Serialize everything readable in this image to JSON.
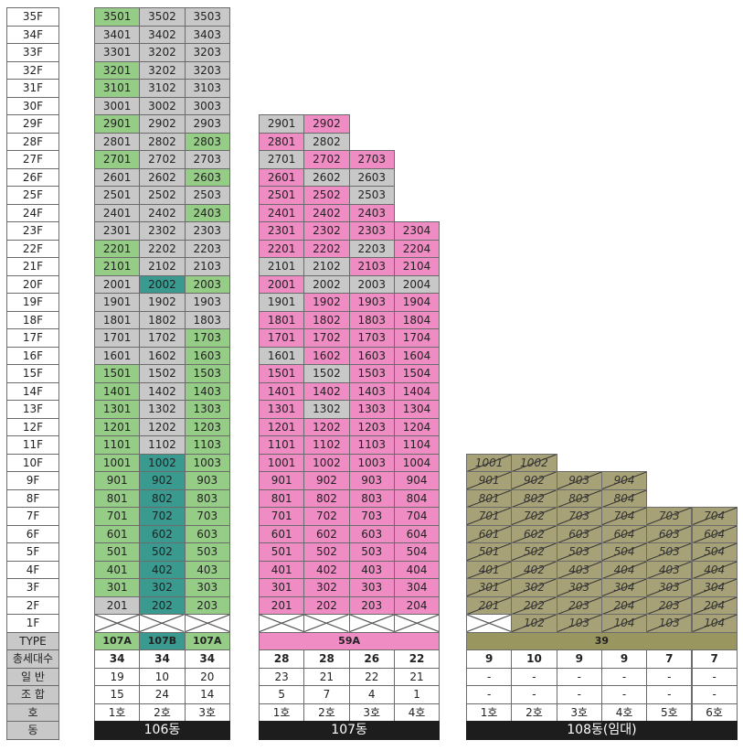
{
  "floor_labels": [
    "35F",
    "34F",
    "33F",
    "32F",
    "31F",
    "30F",
    "29F",
    "28F",
    "27F",
    "26F",
    "25F",
    "24F",
    "23F",
    "22F",
    "21F",
    "20F",
    "19F",
    "18F",
    "17F",
    "16F",
    "15F",
    "14F",
    "13F",
    "12F",
    "11F",
    "10F",
    "9F",
    "8F",
    "7F",
    "6F",
    "5F",
    "4F",
    "3F",
    "2F",
    "1F"
  ],
  "row_labels": {
    "type": "TYPE",
    "total": "총세대수",
    "general": "일 반",
    "union": "조 합",
    "ho": "호",
    "dong": "동"
  },
  "colors": {
    "gray": "#c8c8c8",
    "light_green": "#96cd86",
    "teal": "#3a9a90",
    "pink": "#f08cc4",
    "olive": "#a7a177"
  },
  "buildings": [
    {
      "id": "b106",
      "dong_label": "106동",
      "types": [
        {
          "label": "107A",
          "style": "type-106",
          "span": 1
        },
        {
          "label": "107B",
          "style": "type-107B",
          "span": 1
        },
        {
          "label": "107A",
          "style": "type-106",
          "span": 1
        }
      ],
      "ho": [
        "1호",
        "2호",
        "3호"
      ],
      "total": [
        "34",
        "34",
        "34"
      ],
      "general": [
        "19",
        "10",
        "20"
      ],
      "union": [
        "15",
        "24",
        "14"
      ],
      "units": {
        "35": [
          "3501:g",
          "3502:x",
          "3503:x"
        ],
        "34": [
          "3401:x",
          "3402:x",
          "3403:x"
        ],
        "33": [
          "3301:x",
          "3202:x",
          "3203:x"
        ],
        "32": [
          "3201:g",
          "3202:x",
          "3203:x"
        ],
        "31": [
          "3101:g",
          "3102:x",
          "3103:x"
        ],
        "30": [
          "3001:x",
          "3002:x",
          "3003:x"
        ],
        "29": [
          "2901:g",
          "2902:x",
          "2903:x"
        ],
        "28": [
          "2801:x",
          "2802:x",
          "2803:g"
        ],
        "27": [
          "2701:g",
          "2702:x",
          "2703:x"
        ],
        "26": [
          "2601:x",
          "2602:x",
          "2603:g"
        ],
        "25": [
          "2501:x",
          "2502:x",
          "2503:x"
        ],
        "24": [
          "2401:x",
          "2402:x",
          "2403:g"
        ],
        "23": [
          "2301:x",
          "2302:x",
          "2303:x"
        ],
        "22": [
          "2201:g",
          "2202:x",
          "2203:x"
        ],
        "21": [
          "2101:g",
          "2102:x",
          "2103:x"
        ],
        "20": [
          "2001:x",
          "2002:t",
          "2003:g"
        ],
        "19": [
          "1901:x",
          "1902:x",
          "1903:x"
        ],
        "18": [
          "1801:x",
          "1802:x",
          "1803:x"
        ],
        "17": [
          "1701:x",
          "1702:x",
          "1703:g"
        ],
        "16": [
          "1601:x",
          "1602:x",
          "1603:g"
        ],
        "15": [
          "1501:g",
          "1502:x",
          "1503:g"
        ],
        "14": [
          "1401:g",
          "1402:x",
          "1403:g"
        ],
        "13": [
          "1301:g",
          "1302:x",
          "1303:g"
        ],
        "12": [
          "1201:g",
          "1202:x",
          "1203:g"
        ],
        "11": [
          "1101:g",
          "1102:x",
          "1103:g"
        ],
        "10": [
          "1001:g",
          "1002:t",
          "1003:g"
        ],
        "9": [
          "901:g",
          "902:t",
          "903:g"
        ],
        "8": [
          "801:g",
          "802:t",
          "803:g"
        ],
        "7": [
          "701:g",
          "702:t",
          "703:g"
        ],
        "6": [
          "601:g",
          "602:t",
          "603:g"
        ],
        "5": [
          "501:g",
          "502:t",
          "503:g"
        ],
        "4": [
          "401:g",
          "402:t",
          "403:g"
        ],
        "3": [
          "301:g",
          "302:t",
          "303:g"
        ],
        "2": [
          "201:x",
          "202:t",
          "203:g"
        ]
      }
    },
    {
      "id": "b107",
      "dong_label": "107동",
      "types": [
        {
          "label": "59A",
          "style": "type-107",
          "span": 4
        }
      ],
      "ho": [
        "1호",
        "2호",
        "3호",
        "4호"
      ],
      "total": [
        "28",
        "28",
        "26",
        "22"
      ],
      "general": [
        "23",
        "21",
        "22",
        "21"
      ],
      "union": [
        "5",
        "7",
        "4",
        "1"
      ],
      "units": {
        "29": [
          "2901:x",
          "2902:p"
        ],
        "28": [
          "2801:p",
          "2802:x"
        ],
        "27": [
          "2701:x",
          "2702:p",
          "2703:p"
        ],
        "26": [
          "2601:p",
          "2602:x",
          "2603:x"
        ],
        "25": [
          "2501:p",
          "2502:p",
          "2503:x"
        ],
        "24": [
          "2401:p",
          "2402:p",
          "2403:p"
        ],
        "23": [
          "2301:p",
          "2302:p",
          "2303:p",
          "2304:p"
        ],
        "22": [
          "2201:p",
          "2202:p",
          "2203:x",
          "2204:p"
        ],
        "21": [
          "2101:x",
          "2102:x",
          "2103:p",
          "2104:p"
        ],
        "20": [
          "2001:p",
          "2002:x",
          "2003:x",
          "2004:x"
        ],
        "19": [
          "1901:x",
          "1902:p",
          "1903:p",
          "1904:p"
        ],
        "18": [
          "1801:p",
          "1802:p",
          "1803:p",
          "1804:p"
        ],
        "17": [
          "1701:p",
          "1702:p",
          "1703:p",
          "1704:p"
        ],
        "16": [
          "1601:x",
          "1602:p",
          "1603:p",
          "1604:p"
        ],
        "15": [
          "1501:p",
          "1502:x",
          "1503:p",
          "1504:p"
        ],
        "14": [
          "1401:p",
          "1402:p",
          "1403:p",
          "1404:p"
        ],
        "13": [
          "1301:p",
          "1302:x",
          "1303:p",
          "1304:p"
        ],
        "12": [
          "1201:p",
          "1202:p",
          "1203:p",
          "1204:p"
        ],
        "11": [
          "1101:p",
          "1102:p",
          "1103:p",
          "1104:p"
        ],
        "10": [
          "1001:p",
          "1002:p",
          "1003:p",
          "1004:p"
        ],
        "9": [
          "901:p",
          "902:p",
          "903:p",
          "904:p"
        ],
        "8": [
          "801:p",
          "802:p",
          "803:p",
          "804:p"
        ],
        "7": [
          "701:p",
          "702:p",
          "703:p",
          "704:p"
        ],
        "6": [
          "601:p",
          "602:p",
          "603:p",
          "604:p"
        ],
        "5": [
          "501:p",
          "502:p",
          "503:p",
          "504:p"
        ],
        "4": [
          "401:p",
          "402:p",
          "403:p",
          "404:p"
        ],
        "3": [
          "301:p",
          "302:p",
          "303:p",
          "304:p"
        ],
        "2": [
          "201:p",
          "202:p",
          "203:p",
          "204:p"
        ]
      }
    },
    {
      "id": "b108",
      "dong_label": "108동(임대)",
      "types": [
        {
          "label": "39",
          "style": "type-108",
          "span": 6
        }
      ],
      "ho": [
        "1호",
        "2호",
        "3호",
        "4호",
        "5호",
        "6호"
      ],
      "total": [
        "9",
        "10",
        "9",
        "9",
        "7",
        "7"
      ],
      "general": [
        "-",
        "-",
        "-",
        "-",
        "-",
        "-"
      ],
      "union": [
        "-",
        "-",
        "-",
        "-",
        "-",
        "-"
      ],
      "units": {
        "10": [
          "1001:o",
          "1002:o"
        ],
        "9": [
          "901:o",
          "902:o",
          "903:o",
          "904:o"
        ],
        "8": [
          "801:o",
          "802:o",
          "803:o",
          "804:o"
        ],
        "7": [
          "701:o",
          "702:o",
          "703:o",
          "704:o",
          "703:o",
          "704:o"
        ],
        "6": [
          "601:o",
          "602:o",
          "603:o",
          "604:o",
          "603:o",
          "604:o"
        ],
        "5": [
          "501:o",
          "502:o",
          "503:o",
          "504:o",
          "503:o",
          "504:o"
        ],
        "4": [
          "401:o",
          "402:o",
          "403:o",
          "404:o",
          "403:o",
          "404:o"
        ],
        "3": [
          "301:o",
          "302:o",
          "303:o",
          "304:o",
          "303:o",
          "304:o"
        ],
        "2": [
          "201:o",
          "202:o",
          "203:o",
          "204:o",
          "203:o",
          "204:o"
        ],
        "1": [
          "-:xx",
          "102:o",
          "103:o",
          "104:o",
          "103:o",
          "104:o"
        ]
      }
    }
  ]
}
